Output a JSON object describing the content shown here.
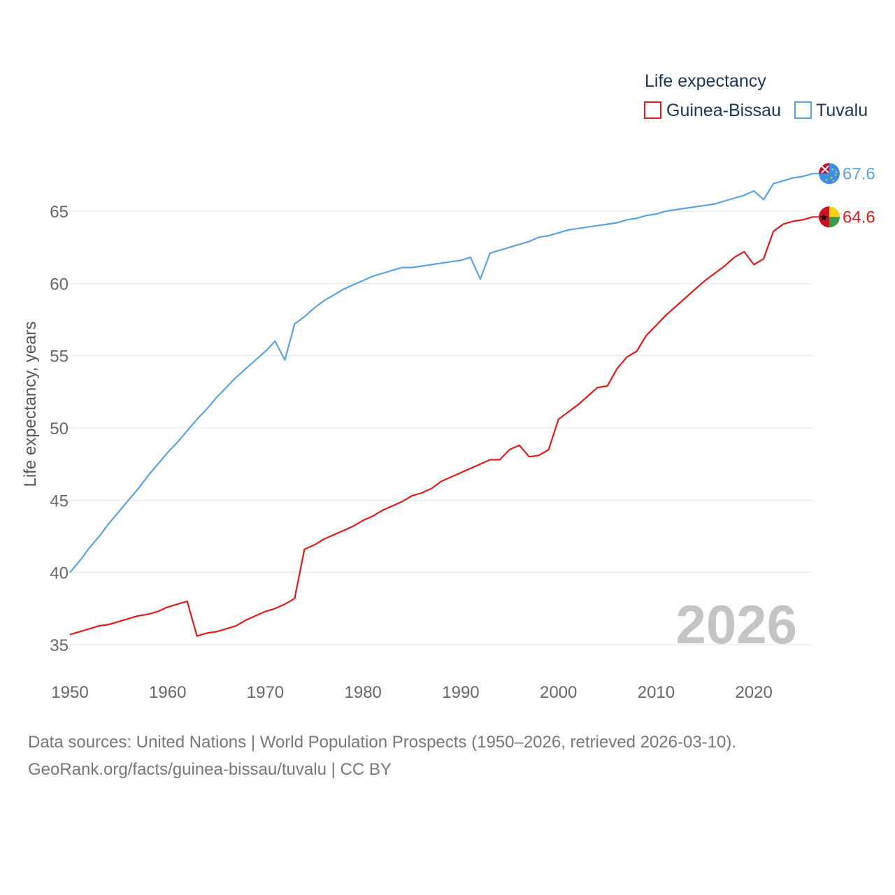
{
  "chart_data": {
    "type": "line",
    "title": "",
    "ylabel": "Life expectancy, years",
    "xlabel": "",
    "xlim": [
      1950,
      2026
    ],
    "ylim": [
      33,
      69
    ],
    "x_ticks": [
      1950,
      1960,
      1970,
      1980,
      1990,
      2000,
      2010,
      2020
    ],
    "y_ticks": [
      35,
      40,
      45,
      50,
      55,
      60,
      65
    ],
    "grid": true,
    "year_label": "2026",
    "legend": {
      "title": "Life expectancy",
      "placement": "top-right",
      "items": [
        "Guinea-Bissau",
        "Tuvalu"
      ]
    },
    "series": [
      {
        "name": "Guinea-Bissau",
        "color": "#e41a1c",
        "end_label": "64.6",
        "flag": "guinea-bissau-flag",
        "x": [
          1950,
          1951,
          1952,
          1953,
          1954,
          1955,
          1956,
          1957,
          1958,
          1959,
          1960,
          1961,
          1962,
          1963,
          1964,
          1965,
          1966,
          1967,
          1968,
          1969,
          1970,
          1971,
          1972,
          1973,
          1974,
          1975,
          1976,
          1977,
          1978,
          1979,
          1980,
          1981,
          1982,
          1983,
          1984,
          1985,
          1986,
          1987,
          1988,
          1989,
          1990,
          1991,
          1992,
          1993,
          1994,
          1995,
          1996,
          1997,
          1998,
          1999,
          2000,
          2001,
          2002,
          2003,
          2004,
          2005,
          2006,
          2007,
          2008,
          2009,
          2010,
          2011,
          2012,
          2013,
          2014,
          2015,
          2016,
          2017,
          2018,
          2019,
          2020,
          2021,
          2022,
          2023,
          2024,
          2025,
          2026
        ],
        "values": [
          35.7,
          35.9,
          36.1,
          36.3,
          36.4,
          36.6,
          36.8,
          37.0,
          37.1,
          37.3,
          37.6,
          37.8,
          38.0,
          35.6,
          35.8,
          35.9,
          36.1,
          36.3,
          36.7,
          37.0,
          37.3,
          37.5,
          37.8,
          38.2,
          41.6,
          41.9,
          42.3,
          42.6,
          42.9,
          43.2,
          43.6,
          43.9,
          44.3,
          44.6,
          44.9,
          45.3,
          45.5,
          45.8,
          46.3,
          46.6,
          46.9,
          47.2,
          47.5,
          47.8,
          47.8,
          48.5,
          48.8,
          48.0,
          48.1,
          48.5,
          50.6,
          51.1,
          51.6,
          52.2,
          52.8,
          52.9,
          54.1,
          54.9,
          55.3,
          56.4,
          57.1,
          57.8,
          58.4,
          59.0,
          59.6,
          60.2,
          60.7,
          61.2,
          61.8,
          62.2,
          61.3,
          61.7,
          63.6,
          64.1,
          64.3,
          64.4,
          64.6
        ]
      },
      {
        "name": "Tuvalu",
        "color": "#5ba3e0",
        "end_label": "67.6",
        "flag": "tuvalu-flag",
        "x": [
          1950,
          1951,
          1952,
          1953,
          1954,
          1955,
          1956,
          1957,
          1958,
          1959,
          1960,
          1961,
          1962,
          1963,
          1964,
          1965,
          1966,
          1967,
          1968,
          1969,
          1970,
          1971,
          1972,
          1973,
          1974,
          1975,
          1976,
          1977,
          1978,
          1979,
          1980,
          1981,
          1982,
          1983,
          1984,
          1985,
          1986,
          1987,
          1988,
          1989,
          1990,
          1991,
          1992,
          1993,
          1994,
          1995,
          1996,
          1997,
          1998,
          1999,
          2000,
          2001,
          2002,
          2003,
          2004,
          2005,
          2006,
          2007,
          2008,
          2009,
          2010,
          2011,
          2012,
          2013,
          2014,
          2015,
          2016,
          2017,
          2018,
          2019,
          2020,
          2021,
          2022,
          2023,
          2024,
          2025,
          2026
        ],
        "values": [
          40.0,
          40.8,
          41.7,
          42.5,
          43.4,
          44.2,
          45.0,
          45.8,
          46.7,
          47.5,
          48.3,
          49.0,
          49.8,
          50.6,
          51.3,
          52.1,
          52.8,
          53.5,
          54.1,
          54.7,
          55.3,
          56.0,
          54.7,
          57.2,
          57.7,
          58.3,
          58.8,
          59.2,
          59.6,
          59.9,
          60.2,
          60.5,
          60.7,
          60.9,
          61.1,
          61.1,
          61.2,
          61.3,
          61.4,
          61.5,
          61.6,
          61.8,
          60.3,
          62.1,
          62.3,
          62.5,
          62.7,
          62.9,
          63.2,
          63.3,
          63.5,
          63.7,
          63.8,
          63.9,
          64.0,
          64.1,
          64.2,
          64.4,
          64.5,
          64.7,
          64.8,
          65.0,
          65.1,
          65.2,
          65.3,
          65.4,
          65.5,
          65.7,
          65.9,
          66.1,
          66.4,
          65.8,
          66.9,
          67.1,
          67.3,
          67.4,
          67.6
        ]
      }
    ]
  },
  "footer": {
    "source_line": "Data sources: United Nations | World Population Prospects (1950–2026, retrieved 2026-03-10).",
    "url_line": "GeoRank.org/facts/guinea-bissau/tuvalu | CC BY"
  }
}
